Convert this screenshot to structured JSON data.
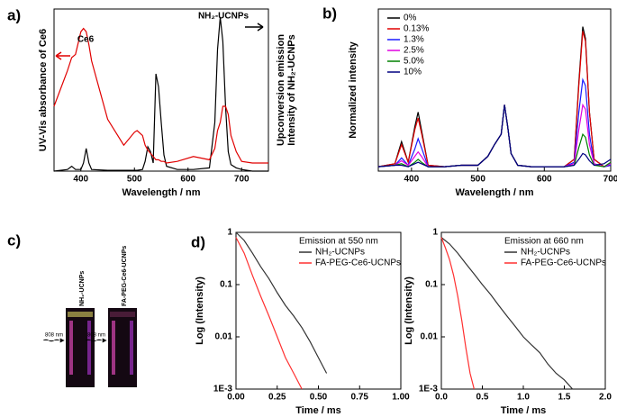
{
  "chart_data": [
    {
      "type": "line",
      "panel_label": "a)",
      "x_label": "Wavelength / nm",
      "y_label": "UV-Vis absorbance of Ce6",
      "y2_label": [
        "Upconversion emission",
        "Intensity of NH₂-UCNPs"
      ],
      "annotations": [
        "Ce6",
        "NH₂-UCNPs"
      ],
      "xlim": [
        350,
        750
      ],
      "xticks": [
        400,
        500,
        600,
        700
      ],
      "ylim": [
        0,
        100
      ],
      "x": [
        350,
        375,
        383,
        390,
        400,
        405,
        410,
        415,
        420,
        450,
        480,
        500,
        505,
        515,
        520,
        525,
        530,
        535,
        540,
        545,
        550,
        555,
        560,
        580,
        610,
        640,
        650,
        655,
        660,
        665,
        670,
        675,
        680,
        690,
        700,
        720,
        750
      ],
      "series": [
        {
          "name": "NH₂-UCNPs",
          "color": "#000000",
          "values": [
            0,
            1,
            3,
            1,
            1,
            5,
            14,
            5,
            1,
            0.5,
            0.5,
            0.5,
            0.5,
            1,
            6,
            15,
            12,
            5,
            60,
            52,
            30,
            10,
            3,
            1,
            1,
            2,
            30,
            75,
            95,
            80,
            40,
            12,
            4,
            2,
            1,
            0,
            0
          ]
        },
        {
          "name": "Ce6",
          "color": "#e00000",
          "values": [
            40,
            62,
            70,
            72,
            86,
            88,
            86,
            78,
            68,
            32,
            16,
            24,
            25,
            22,
            16,
            13,
            11,
            9,
            7,
            7,
            6,
            6,
            5,
            6,
            9,
            7,
            14,
            25,
            30,
            40,
            40,
            35,
            22,
            12,
            6,
            5,
            5
          ]
        }
      ]
    },
    {
      "type": "line",
      "panel_label": "b)",
      "x_label": "Wavelength / nm",
      "y_label": "Normalized intensity",
      "xlim": [
        350,
        700
      ],
      "xticks": [
        400,
        500,
        600,
        700
      ],
      "ylim": [
        0,
        110
      ],
      "x": [
        350,
        375,
        385,
        395,
        405,
        410,
        415,
        425,
        450,
        475,
        500,
        515,
        525,
        535,
        540,
        545,
        550,
        560,
        580,
        600,
        630,
        645,
        652,
        658,
        662,
        668,
        675,
        690,
        700
      ],
      "series": [
        {
          "name": "0%",
          "color": "#000000",
          "values": [
            3,
            5,
            20,
            6,
            30,
            40,
            28,
            4,
            3,
            4,
            4,
            10,
            18,
            25,
            45,
            30,
            12,
            4,
            3,
            3,
            3,
            8,
            60,
            98,
            90,
            40,
            8,
            3,
            4
          ]
        },
        {
          "name": "0.13%",
          "color": "#e00000",
          "values": [
            3,
            5,
            18,
            6,
            28,
            36,
            26,
            4,
            3,
            4,
            4,
            10,
            18,
            25,
            45,
            30,
            12,
            4,
            3,
            3,
            3,
            8,
            58,
            95,
            88,
            40,
            8,
            3,
            4
          ]
        },
        {
          "name": "1.3%",
          "color": "#1a1aff",
          "values": [
            3,
            4,
            9,
            4,
            15,
            22,
            16,
            3,
            3,
            4,
            4,
            10,
            18,
            25,
            45,
            30,
            12,
            4,
            3,
            3,
            3,
            6,
            40,
            62,
            58,
            25,
            5,
            3,
            4
          ]
        },
        {
          "name": "2.5%",
          "color": "#e000e0",
          "values": [
            3,
            4,
            7,
            4,
            10,
            13,
            10,
            3,
            3,
            4,
            4,
            10,
            18,
            25,
            45,
            30,
            12,
            4,
            3,
            3,
            3,
            5,
            28,
            45,
            42,
            18,
            5,
            3,
            5
          ]
        },
        {
          "name": "5.0%",
          "color": "#008000",
          "values": [
            3,
            4,
            5,
            3,
            6,
            8,
            6,
            3,
            3,
            4,
            4,
            10,
            18,
            25,
            45,
            30,
            12,
            4,
            3,
            3,
            3,
            4,
            16,
            25,
            23,
            11,
            4,
            3,
            6
          ]
        },
        {
          "name": "10%",
          "color": "#000080",
          "values": [
            3,
            4,
            4,
            3,
            5,
            6,
            5,
            3,
            3,
            4,
            4,
            10,
            18,
            25,
            45,
            30,
            12,
            4,
            3,
            3,
            3,
            4,
            8,
            12,
            11,
            7,
            4,
            5,
            8
          ]
        }
      ]
    },
    {
      "type": "photo",
      "panel_label": "c)",
      "labels": [
        "NH₂-UCNPs",
        "FA-PEG-Ce6-UCNPs"
      ],
      "laser": [
        "808 nm",
        "808 nm"
      ]
    },
    {
      "type": "line",
      "panel_label": "d)",
      "legend_title": "Emission at 550 nm",
      "x_label": "Time / ms",
      "y_label": "Log (Intensity)",
      "log_y": true,
      "xlim": [
        0,
        1
      ],
      "xticks": [
        {
          "value": 0,
          "label": "0.00"
        },
        0.25,
        {
          "value": 0.5,
          "label": "0.50"
        },
        0.75,
        {
          "value": 1,
          "label": "1.00"
        }
      ],
      "ylim": [
        0.001,
        1
      ],
      "yticks": [
        {
          "value": 0.001,
          "label": "1E-3"
        },
        0.01,
        0.1,
        1
      ],
      "series": [
        {
          "name": "NH₂-UCNPs",
          "color": "#333333",
          "x": [
            0,
            0.05,
            0.1,
            0.15,
            0.2,
            0.25,
            0.3,
            0.35,
            0.4,
            0.45,
            0.5,
            0.55
          ],
          "values": [
            1,
            0.7,
            0.4,
            0.22,
            0.13,
            0.07,
            0.04,
            0.025,
            0.015,
            0.008,
            0.004,
            0.002
          ]
        },
        {
          "name": "FA-PEG-Ce6-UCNPs",
          "color": "#ff3030",
          "x": [
            0,
            0.05,
            0.1,
            0.15,
            0.2,
            0.25,
            0.3,
            0.35,
            0.4
          ],
          "values": [
            0.8,
            0.4,
            0.15,
            0.06,
            0.025,
            0.01,
            0.004,
            0.002,
            0.001
          ]
        }
      ]
    },
    {
      "type": "line",
      "legend_title": "Emission at 660 nm",
      "x_label": "Time / ms",
      "y_label": "Log (Intensity)",
      "log_y": true,
      "xlim": [
        0,
        2
      ],
      "xticks": [
        {
          "value": 0,
          "label": "0.0"
        },
        0.5,
        {
          "value": 1,
          "label": "1.0"
        },
        1.5,
        {
          "value": 2,
          "label": "2.0"
        }
      ],
      "ylim": [
        0.001,
        1
      ],
      "yticks": [
        {
          "value": 0.001,
          "label": "1E-3"
        },
        0.01,
        0.1,
        1
      ],
      "series": [
        {
          "name": "NH₂-UCNPs",
          "color": "#333333",
          "x": [
            0,
            0.1,
            0.2,
            0.3,
            0.4,
            0.5,
            0.6,
            0.7,
            0.8,
            0.9,
            1.0,
            1.1,
            1.2,
            1.3,
            1.4,
            1.5,
            1.6
          ],
          "values": [
            0.8,
            0.6,
            0.4,
            0.25,
            0.16,
            0.1,
            0.065,
            0.04,
            0.025,
            0.016,
            0.01,
            0.007,
            0.005,
            0.003,
            0.002,
            0.0015,
            0.001
          ]
        },
        {
          "name": "FA-PEG-Ce6-UCNPs",
          "color": "#ff3030",
          "x": [
            0,
            0.05,
            0.1,
            0.15,
            0.2,
            0.25,
            0.3,
            0.35,
            0.4
          ],
          "values": [
            0.8,
            0.5,
            0.3,
            0.15,
            0.06,
            0.02,
            0.006,
            0.002,
            0.001
          ]
        }
      ]
    }
  ]
}
